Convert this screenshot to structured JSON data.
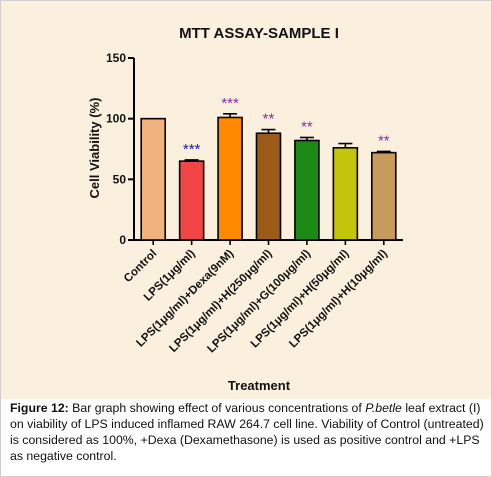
{
  "chart_data": {
    "type": "bar",
    "title": "MTT ASSAY-SAMPLE I",
    "xlabel": "Treatment",
    "ylabel": "Cell Viability (%)",
    "ylim": [
      0,
      150
    ],
    "yticks": [
      "0",
      "50",
      "100",
      "150"
    ],
    "grid": false,
    "categories": [
      "Control",
      "LPS(1μg/ml)",
      "LPS(1μg/ml)+Dexa(9nM)",
      "LPS(1μg/ml)+H(250μg/ml)",
      "LPS(1μg/ml)+G(100μg/ml)",
      "LPS(1μg/ml)+H(50μg/ml)",
      "LPS(1μg/ml)+H(10μg/ml)"
    ],
    "values": [
      100,
      65,
      101,
      88,
      82,
      76,
      72
    ],
    "errors": [
      0,
      1,
      3,
      3,
      2.5,
      3.5,
      1
    ],
    "significance": [
      "",
      "***",
      "***",
      "**",
      "**",
      "",
      "**"
    ],
    "colors": [
      "#f2b27e",
      "#f24646",
      "#ff8a00",
      "#9c5c17",
      "#1c8a14",
      "#c4c40c",
      "#c89a5c"
    ],
    "significance_colors": [
      "",
      "#1b1bb5",
      "#8a2ca5",
      "#8a2ca5",
      "#8a2ca5",
      "",
      "#8a2ca5"
    ]
  },
  "caption": {
    "label": "Figure 12:",
    "part1": " Bar graph showing effect of various concentrations of ",
    "species": "P.betle",
    "part2": " leaf extract (I) on viability of LPS induced inflamed RAW 264.7 cell line. Viability of Control (untreated) is considered as 100%, +Dexa (Dexamethasone) is used as positive control and +LPS as negative control."
  }
}
